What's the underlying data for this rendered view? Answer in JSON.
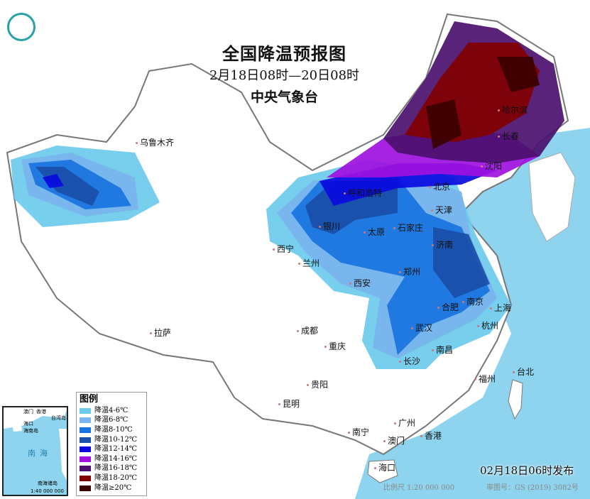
{
  "header": {
    "title": "全国降温预报图",
    "period": "2月18日08时—20日08时",
    "agency": "中央气象台"
  },
  "legend": {
    "title": "图例",
    "items": [
      {
        "label": "降温4-6℃",
        "color": "#6ccbec"
      },
      {
        "label": "降温6-8℃",
        "color": "#7ab4ee"
      },
      {
        "label": "降温8-10℃",
        "color": "#1874e0"
      },
      {
        "label": "降温10-12℃",
        "color": "#1a4ea8"
      },
      {
        "label": "降温12-14℃",
        "color": "#0a0ae0"
      },
      {
        "label": "降温14-16℃",
        "color": "#a010e0"
      },
      {
        "label": "降温16-18℃",
        "color": "#4a106e"
      },
      {
        "label": "降温18-20℃",
        "color": "#800000"
      },
      {
        "label": "降温≥20℃",
        "color": "#3c0000"
      }
    ]
  },
  "cities": [
    "乌鲁木齐",
    "呼和浩特",
    "北京",
    "天津",
    "石家庄",
    "太原",
    "济南",
    "银川",
    "西宁",
    "兰州",
    "郑州",
    "西安",
    "合肥",
    "南京",
    "上海",
    "杭州",
    "武汉",
    "成都",
    "重庆",
    "长沙",
    "南昌",
    "贵阳",
    "福州",
    "台北",
    "昆明",
    "南宁",
    "广州",
    "香港",
    "澳门",
    "海口",
    "拉萨",
    "哈尔滨",
    "长春",
    "沈阳"
  ],
  "inset": {
    "sea_label": "南海",
    "islands_label": "南海诸岛",
    "scale": "1:40 000 000",
    "labels": [
      "海口",
      "海南岛",
      "澳门",
      "香港",
      "台湾岛"
    ]
  },
  "footer": {
    "issued": "02月18日06时发布",
    "scale": "比例尺 1:20 000 000",
    "map_number": "审图号：GS (2019) 3082号"
  },
  "colors": {
    "sea": "#8fd4ee",
    "land": "#ffffff",
    "border": "#888888"
  }
}
